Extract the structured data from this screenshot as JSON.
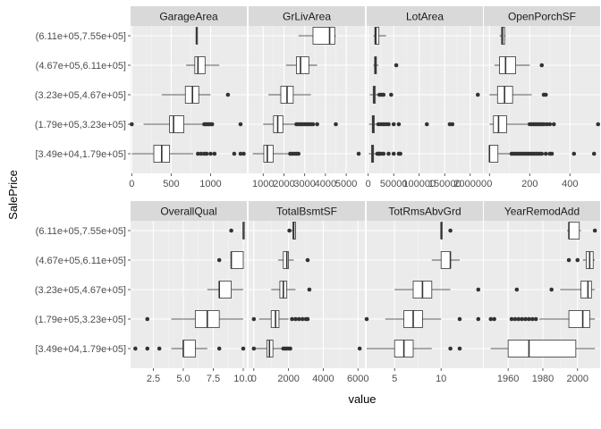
{
  "chart_data": {
    "type": "boxplot",
    "xlabel": "value",
    "ylabel": "SalePrice",
    "categories": [
      "[3.49e+04,1.79e+05]",
      "(1.79e+05,3.23e+05]",
      "(3.23e+05,4.67e+05]",
      "(4.67e+05,6.11e+05]",
      "(6.11e+05,7.55e+05]"
    ],
    "grid": true,
    "facets": [
      {
        "name": "GarageArea",
        "xlim": [
          -15,
          1460
        ],
        "ticks": [
          0,
          500,
          1000
        ],
        "tick_labels": [
          "0",
          "500",
          "1000"
        ],
        "boxes": [
          {
            "min": 0,
            "q1": 280,
            "median": 380,
            "q3": 480,
            "max": 780,
            "outliers": [
              840,
              880,
              920,
              950,
              1000,
              1050,
              1300,
              1380,
              1420
            ]
          },
          {
            "min": 150,
            "q1": 480,
            "median": 530,
            "q3": 660,
            "max": 900,
            "outliers": [
              0,
              920,
              940,
              960,
              980,
              1000,
              1020,
              1380
            ]
          },
          {
            "min": 380,
            "q1": 680,
            "median": 770,
            "q3": 850,
            "max": 1000,
            "outliers": [
              1220
            ]
          },
          {
            "min": 690,
            "q1": 800,
            "median": 840,
            "q3": 930,
            "max": 1110,
            "outliers": []
          },
          {
            "min": 815,
            "q1": 820,
            "median": 820,
            "q3": 825,
            "max": 832,
            "outliers": []
          }
        ]
      },
      {
        "name": "GrLivArea",
        "xlim": [
          300,
          5900
        ],
        "ticks": [
          1000,
          2000,
          3000,
          4000,
          5000
        ],
        "tick_labels": [
          "1000",
          "2000",
          "3000",
          "4000",
          "5000"
        ],
        "boxes": [
          {
            "min": 500,
            "q1": 1030,
            "median": 1200,
            "q3": 1480,
            "max": 2200,
            "outliers": [
              2300,
              2400,
              2500,
              2600,
              2700,
              5600
            ]
          },
          {
            "min": 1000,
            "q1": 1500,
            "median": 1700,
            "q3": 1950,
            "max": 2500,
            "outliers": [
              2600,
              2700,
              2800,
              2900,
              3000,
              3100,
              3200,
              3300,
              3400,
              3600,
              4500
            ]
          },
          {
            "min": 1250,
            "q1": 1850,
            "median": 2150,
            "q3": 2450,
            "max": 3300,
            "outliers": []
          },
          {
            "min": 2100,
            "q1": 2600,
            "median": 2800,
            "q3": 3200,
            "max": 3600,
            "outliers": []
          },
          {
            "min": 2700,
            "q1": 3400,
            "median": 4200,
            "q3": 4450,
            "max": 4500,
            "outliers": []
          }
        ]
      },
      {
        "name": "LotArea",
        "xlim": [
          -3000,
          225000
        ],
        "ticks": [
          0,
          50000,
          100000,
          150000,
          200000
        ],
        "tick_labels": [
          "0",
          "50000",
          "100000",
          "150000",
          "200000"
        ],
        "boxes": [
          {
            "min": 1300,
            "q1": 6500,
            "median": 8500,
            "q3": 10500,
            "max": 16000,
            "outliers": [
              18000,
              20000,
              22000,
              25000,
              30000,
              40000,
              50000,
              60000,
              63000
            ]
          },
          {
            "min": 1500,
            "q1": 8000,
            "median": 9800,
            "q3": 12000,
            "max": 18000,
            "outliers": [
              20000,
              25000,
              30000,
              35000,
              40000,
              50000,
              60000,
              115000,
              160000,
              165000
            ]
          },
          {
            "min": 3000,
            "q1": 9800,
            "median": 11700,
            "q3": 14000,
            "max": 18000,
            "outliers": [
              22000,
              26000,
              30000,
              45000,
              215000
            ]
          },
          {
            "min": 10000,
            "q1": 12500,
            "median": 14000,
            "q3": 16000,
            "max": 20000,
            "outliers": [
              55000
            ]
          },
          {
            "min": 10000,
            "q1": 13000,
            "median": 15000,
            "q3": 21000,
            "max": 35000,
            "outliers": []
          }
        ]
      },
      {
        "name": "OpenPorchSF",
        "xlim": [
          -28,
          550
        ],
        "ticks": [
          0,
          200,
          400
        ],
        "tick_labels": [
          "0",
          "200",
          "400"
        ],
        "boxes": [
          {
            "min": 0,
            "q1": 0,
            "median": 0,
            "q3": 42,
            "max": 105,
            "outliers": [
              110,
              120,
              130,
              140,
              150,
              160,
              170,
              180,
              190,
              200,
              210,
              220,
              230,
              240,
              250,
              260,
              280,
              300,
              310,
              420,
              520
            ]
          },
          {
            "min": 0,
            "q1": 20,
            "median": 45,
            "q3": 85,
            "max": 190,
            "outliers": [
              200,
              210,
              220,
              230,
              240,
              250,
              260,
              270,
              285,
              300,
              320,
              540
            ]
          },
          {
            "min": 0,
            "q1": 40,
            "median": 75,
            "q3": 115,
            "max": 210,
            "outliers": [
              270,
              280
            ]
          },
          {
            "min": 25,
            "q1": 50,
            "median": 80,
            "q3": 130,
            "max": 200,
            "outliers": [
              260
            ]
          },
          {
            "min": 50,
            "q1": 60,
            "median": 65,
            "q3": 75,
            "max": 80,
            "outliers": []
          }
        ]
      },
      {
        "name": "OverallQual",
        "xlim": [
          0.6,
          10.3
        ],
        "ticks": [
          2.5,
          5.0,
          7.5,
          10.0
        ],
        "tick_labels": [
          "2.5",
          "5.0",
          "7.5",
          "10.0"
        ],
        "boxes": [
          {
            "min": 4,
            "q1": 5,
            "median": 5,
            "q3": 6,
            "max": 7,
            "outliers": [
              1,
              2,
              3,
              8,
              10
            ]
          },
          {
            "min": 4,
            "q1": 6,
            "median": 7,
            "q3": 8,
            "max": 10,
            "outliers": [
              2
            ]
          },
          {
            "min": 7,
            "q1": 8,
            "median": 8,
            "q3": 9,
            "max": 10,
            "outliers": []
          },
          {
            "min": 9,
            "q1": 9,
            "median": 9,
            "q3": 10,
            "max": 10,
            "outliers": [
              8
            ]
          },
          {
            "min": 10,
            "q1": 10,
            "median": 10,
            "q3": 10,
            "max": 10,
            "outliers": [
              9
            ]
          }
        ]
      },
      {
        "name": "TotalBsmtSF",
        "xlim": [
          -300,
          6400
        ],
        "ticks": [
          0,
          2000,
          4000,
          6000
        ],
        "tick_labels": [
          "0",
          "2000",
          "4000",
          "6000"
        ],
        "boxes": [
          {
            "min": 100,
            "q1": 750,
            "median": 900,
            "q3": 1100,
            "max": 1600,
            "outliers": [
              0,
              1700,
              1800,
              1900,
              2000,
              2100,
              6100
            ]
          },
          {
            "min": 300,
            "q1": 1000,
            "median": 1250,
            "q3": 1450,
            "max": 2000,
            "outliers": [
              0,
              2200,
              2400,
              2600,
              2800,
              3000,
              3100
            ]
          },
          {
            "min": 1000,
            "q1": 1500,
            "median": 1700,
            "q3": 1900,
            "max": 2400,
            "outliers": [
              3200
            ]
          },
          {
            "min": 1400,
            "q1": 1700,
            "median": 1900,
            "q3": 2000,
            "max": 2300,
            "outliers": [
              3100
            ]
          },
          {
            "min": 2150,
            "q1": 2250,
            "median": 2300,
            "q3": 2400,
            "max": 2400,
            "outliers": [
              2050
            ]
          }
        ]
      },
      {
        "name": "TotRmsAbvGrd",
        "xlim": [
          2.0,
          14.5
        ],
        "ticks": [
          5,
          10
        ],
        "tick_labels": [
          "5",
          "10"
        ],
        "boxes": [
          {
            "min": 2,
            "q1": 5,
            "median": 6,
            "q3": 7,
            "max": 9,
            "outliers": [
              11,
              12
            ]
          },
          {
            "min": 4,
            "q1": 6,
            "median": 7,
            "q3": 8,
            "max": 10,
            "outliers": [
              2,
              12,
              14
            ]
          },
          {
            "min": 5,
            "q1": 7,
            "median": 8,
            "q3": 9,
            "max": 11,
            "outliers": [
              14
            ]
          },
          {
            "min": 9,
            "q1": 10,
            "median": 11,
            "q3": 11,
            "max": 12,
            "outliers": []
          },
          {
            "min": 10,
            "q1": 10,
            "median": 10,
            "q3": 10,
            "max": 10,
            "outliers": [
              11
            ]
          }
        ]
      },
      {
        "name": "YearRemodAdd",
        "xlim": [
          1946,
          2013
        ],
        "ticks": [
          1960,
          1980,
          2000
        ],
        "tick_labels": [
          "1960",
          "1980",
          "2000"
        ],
        "boxes": [
          {
            "min": 1950,
            "q1": 1960,
            "median": 1972,
            "q3": 1999,
            "max": 2010,
            "outliers": []
          },
          {
            "min": 1978,
            "q1": 1995,
            "median": 2003,
            "q3": 2007,
            "max": 2010,
            "outliers": [
              1950,
              1952,
              1962,
              1964,
              1966,
              1968,
              1970,
              1972,
              1974,
              1976
            ]
          },
          {
            "min": 1990,
            "q1": 2002,
            "median": 2006,
            "q3": 2008,
            "max": 2010,
            "outliers": [
              1965,
              1985
            ]
          },
          {
            "min": 2003,
            "q1": 2005,
            "median": 2007,
            "q3": 2009,
            "max": 2010,
            "outliers": [
              1995,
              2000
            ]
          },
          {
            "min": 1994,
            "q1": 1995,
            "median": 1995,
            "q3": 2001,
            "max": 2002,
            "outliers": [
              2010
            ]
          }
        ]
      }
    ]
  }
}
